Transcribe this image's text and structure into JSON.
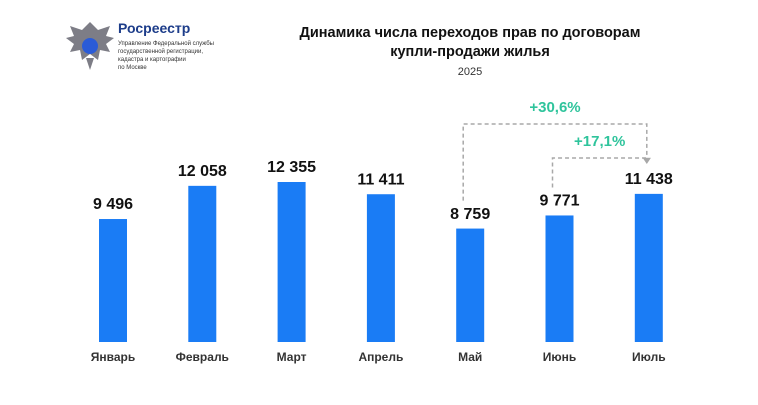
{
  "header": {
    "org": "Росреестр",
    "org_lines": [
      "Управление Федеральной службы",
      "государственной регистрации,",
      "кадастра и картографии",
      "по Москве"
    ]
  },
  "chart_data": {
    "type": "bar",
    "title": "Динамика числа переходов прав по договорам купли-продажи жилья",
    "subtitle": "2025",
    "categories": [
      "Январь",
      "Февраль",
      "Март",
      "Апрель",
      "Май",
      "Июнь",
      "Июль"
    ],
    "values": [
      9496,
      12058,
      12355,
      11411,
      8759,
      9771,
      11438
    ],
    "value_labels": [
      "9 496",
      "12 058",
      "12 355",
      "11 411",
      "8 759",
      "9 771",
      "11 438"
    ],
    "color": "#1a7cf5",
    "annotations": [
      {
        "text": "+30,6%",
        "color": "#2fc49c"
      },
      {
        "text": "+17,1%",
        "color": "#2fc49c"
      }
    ]
  }
}
